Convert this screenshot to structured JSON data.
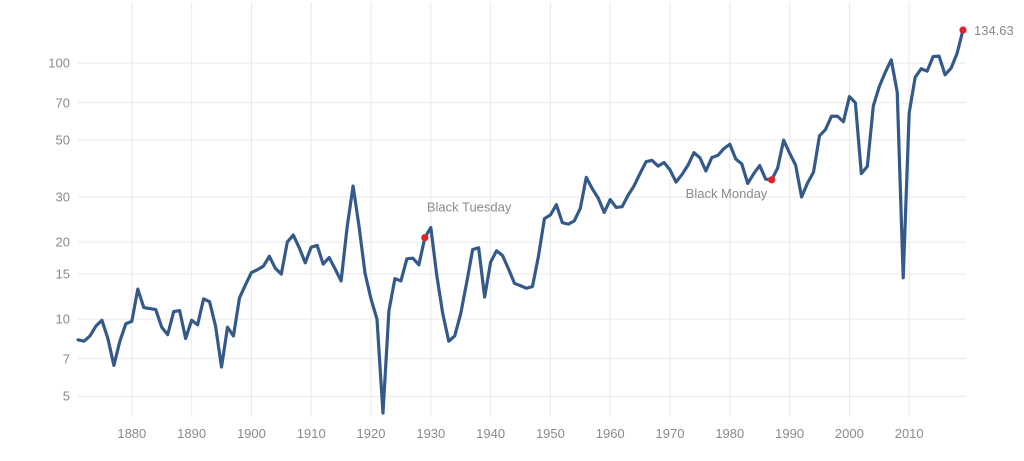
{
  "chart_data": {
    "type": "line",
    "title": "",
    "xlabel": "",
    "ylabel": "",
    "y_scale": "log",
    "xlim": [
      1871,
      2019.5
    ],
    "ylim": [
      4.3,
      150
    ],
    "grid": true,
    "legend": "none",
    "x_ticks": [
      1880,
      1890,
      1900,
      1910,
      1920,
      1930,
      1940,
      1950,
      1960,
      1970,
      1980,
      1990,
      2000,
      2010
    ],
    "y_ticks": [
      5,
      7,
      10,
      15,
      20,
      30,
      50,
      70,
      100
    ],
    "colors": {
      "line": "#345a8a",
      "highlight": "#e0242c",
      "grid": "#e9e9e9",
      "text": "#8a8a8a"
    },
    "series": [
      {
        "points": [
          [
            1871,
            8.3
          ],
          [
            1872,
            8.2
          ],
          [
            1873,
            8.6
          ],
          [
            1874,
            9.4
          ],
          [
            1875,
            9.9
          ],
          [
            1876,
            8.4
          ],
          [
            1877,
            6.6
          ],
          [
            1878,
            8.2
          ],
          [
            1879,
            9.6
          ],
          [
            1880,
            9.8
          ],
          [
            1881,
            13.1
          ],
          [
            1882,
            11.1
          ],
          [
            1883,
            11.0
          ],
          [
            1884,
            10.9
          ],
          [
            1885,
            9.3
          ],
          [
            1886,
            8.7
          ],
          [
            1887,
            10.7
          ],
          [
            1888,
            10.8
          ],
          [
            1889,
            8.4
          ],
          [
            1890,
            9.9
          ],
          [
            1891,
            9.5
          ],
          [
            1892,
            12.0
          ],
          [
            1893,
            11.7
          ],
          [
            1894,
            9.4
          ],
          [
            1895,
            6.5
          ],
          [
            1896,
            9.3
          ],
          [
            1897,
            8.6
          ],
          [
            1898,
            12.1
          ],
          [
            1899,
            13.6
          ],
          [
            1900,
            15.2
          ],
          [
            1901,
            15.6
          ],
          [
            1902,
            16.1
          ],
          [
            1903,
            17.6
          ],
          [
            1904,
            15.8
          ],
          [
            1905,
            15.0
          ],
          [
            1906,
            20.0
          ],
          [
            1907,
            21.3
          ],
          [
            1908,
            19.0
          ],
          [
            1909,
            16.6
          ],
          [
            1910,
            19.1
          ],
          [
            1911,
            19.4
          ],
          [
            1912,
            16.4
          ],
          [
            1913,
            17.4
          ],
          [
            1914,
            15.7
          ],
          [
            1915,
            14.1
          ],
          [
            1916,
            22.8
          ],
          [
            1917,
            33.1
          ],
          [
            1918,
            23.0
          ],
          [
            1919,
            15.1
          ],
          [
            1920,
            12.0
          ],
          [
            1921,
            10.0
          ],
          [
            1922,
            4.3
          ],
          [
            1923,
            10.8
          ],
          [
            1924,
            14.4
          ],
          [
            1925,
            14.1
          ],
          [
            1926,
            17.2
          ],
          [
            1927,
            17.3
          ],
          [
            1928,
            16.3
          ],
          [
            1929,
            20.8
          ],
          [
            1930,
            22.8
          ],
          [
            1931,
            14.8
          ],
          [
            1932,
            10.5
          ],
          [
            1933,
            8.2
          ],
          [
            1934,
            8.6
          ],
          [
            1935,
            10.5
          ],
          [
            1936,
            13.9
          ],
          [
            1937,
            18.7
          ],
          [
            1938,
            19.0
          ],
          [
            1939,
            12.2
          ],
          [
            1940,
            16.7
          ],
          [
            1941,
            18.5
          ],
          [
            1942,
            17.7
          ],
          [
            1943,
            15.7
          ],
          [
            1944,
            13.8
          ],
          [
            1945,
            13.5
          ],
          [
            1946,
            13.2
          ],
          [
            1947,
            13.4
          ],
          [
            1948,
            17.6
          ],
          [
            1949,
            24.7
          ],
          [
            1950,
            25.5
          ],
          [
            1951,
            28.0
          ],
          [
            1952,
            23.8
          ],
          [
            1953,
            23.5
          ],
          [
            1954,
            24.2
          ],
          [
            1955,
            27.1
          ],
          [
            1956,
            35.8
          ],
          [
            1957,
            32.3
          ],
          [
            1958,
            29.7
          ],
          [
            1959,
            26.1
          ],
          [
            1960,
            29.3
          ],
          [
            1961,
            27.3
          ],
          [
            1962,
            27.5
          ],
          [
            1963,
            30.5
          ],
          [
            1964,
            33.2
          ],
          [
            1965,
            37.1
          ],
          [
            1966,
            41.2
          ],
          [
            1967,
            41.7
          ],
          [
            1968,
            39.6
          ],
          [
            1969,
            40.9
          ],
          [
            1970,
            38.3
          ],
          [
            1971,
            34.3
          ],
          [
            1972,
            36.7
          ],
          [
            1973,
            39.9
          ],
          [
            1974,
            44.7
          ],
          [
            1975,
            42.7
          ],
          [
            1976,
            37.9
          ],
          [
            1977,
            42.8
          ],
          [
            1978,
            43.6
          ],
          [
            1979,
            46.3
          ],
          [
            1980,
            48.2
          ],
          [
            1981,
            42.2
          ],
          [
            1982,
            40.4
          ],
          [
            1983,
            33.9
          ],
          [
            1984,
            37.0
          ],
          [
            1985,
            39.8
          ],
          [
            1986,
            35.2
          ],
          [
            1987,
            35.0
          ],
          [
            1988,
            38.9
          ],
          [
            1989,
            50.0
          ],
          [
            1990,
            44.5
          ],
          [
            1991,
            40.0
          ],
          [
            1992,
            30.0
          ],
          [
            1993,
            34.0
          ],
          [
            1994,
            37.5
          ],
          [
            1995,
            52.0
          ],
          [
            1996,
            55.0
          ],
          [
            1997,
            62.0
          ],
          [
            1998,
            62.0
          ],
          [
            1999,
            59.0
          ],
          [
            2000,
            74.0
          ],
          [
            2001,
            70.0
          ],
          [
            2002,
            37.0
          ],
          [
            2003,
            39.5
          ],
          [
            2004,
            68.0
          ],
          [
            2005,
            81.0
          ],
          [
            2006,
            92.0
          ],
          [
            2007,
            103.0
          ],
          [
            2008,
            77.0
          ],
          [
            2009,
            14.5
          ],
          [
            2010,
            64.0
          ],
          [
            2011,
            88.0
          ],
          [
            2012,
            95.0
          ],
          [
            2013,
            93.0
          ],
          [
            2014,
            106.0
          ],
          [
            2015,
            106.5
          ],
          [
            2016,
            90.0
          ],
          [
            2017,
            95.5
          ],
          [
            2018,
            109.0
          ],
          [
            2019,
            134.63
          ]
        ]
      }
    ],
    "annotations": [
      {
        "label": "Black Tuesday",
        "x": 1929,
        "y": 20.8
      },
      {
        "label": "Black Monday",
        "x": 1987,
        "y": 35.0
      },
      {
        "label": "134.63",
        "x": 2019,
        "y": 134.63
      }
    ]
  }
}
